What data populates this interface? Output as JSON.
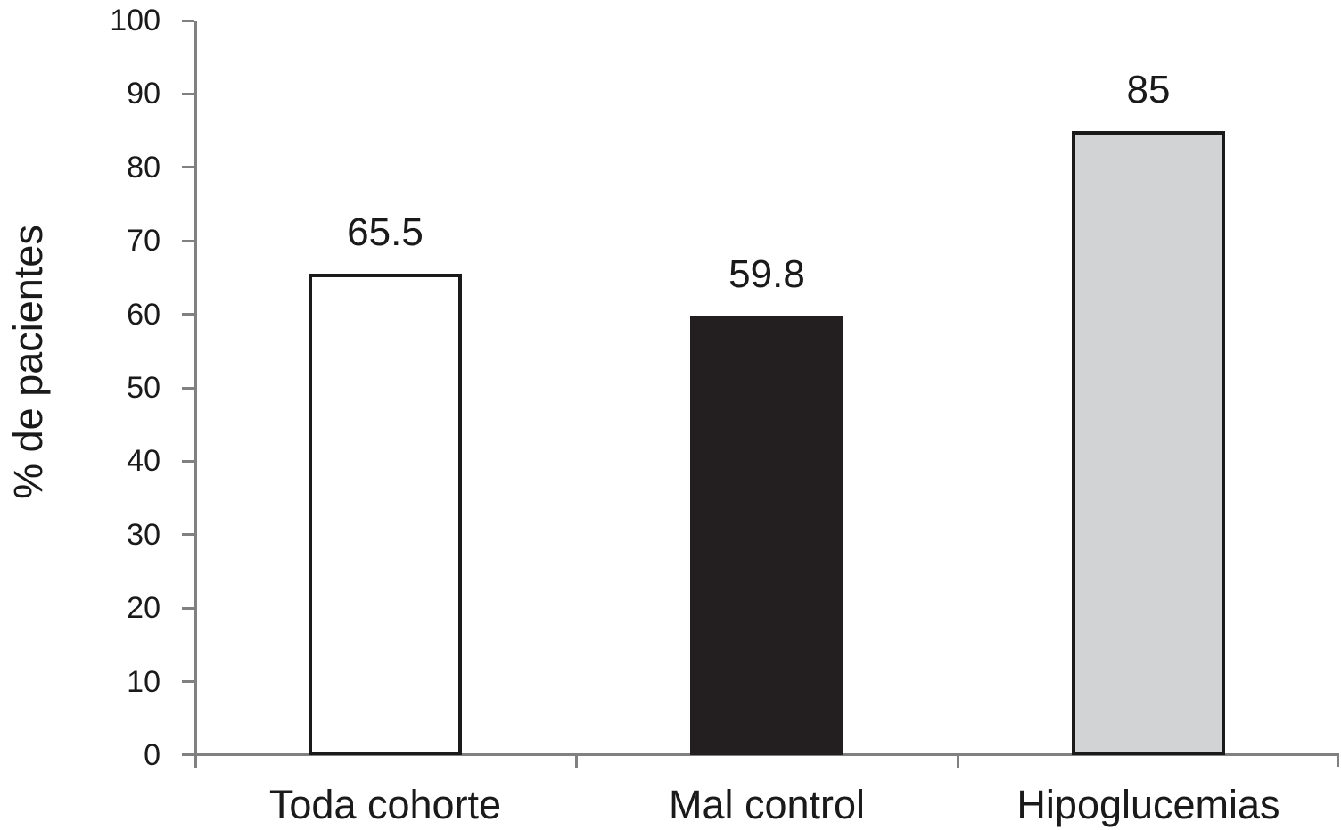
{
  "chart_data": {
    "type": "bar",
    "title": "",
    "xlabel": "",
    "ylabel": "% de pacientes",
    "categories": [
      "Toda cohorte",
      "Mal control",
      "Hipoglucemias"
    ],
    "values": [
      65.5,
      59.8,
      85
    ],
    "value_labels": [
      "65.5",
      "59.8",
      "85"
    ],
    "ylim": [
      0,
      100
    ],
    "y_tick_step": 10,
    "y_tick_labels": [
      "0",
      "10",
      "20",
      "30",
      "40",
      "50",
      "60",
      "70",
      "80",
      "90",
      "100"
    ],
    "grid": "off",
    "legend": "none",
    "bar_styles": [
      {
        "fill": "#ffffff",
        "border": "#1a1a1a"
      },
      {
        "fill": "#231f20",
        "border": "#231f20"
      },
      {
        "fill": "#d1d3d4",
        "border": "#1a1a1a"
      }
    ],
    "axis_color": "#808080",
    "text_color": "#1a1a1a"
  }
}
